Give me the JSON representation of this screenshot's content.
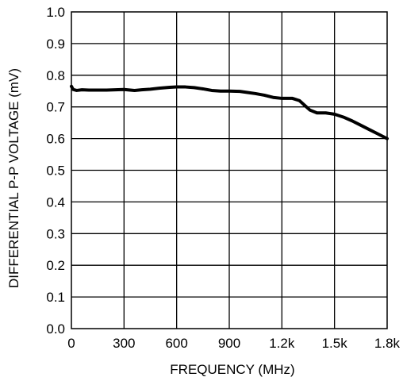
{
  "chart_data": {
    "type": "line",
    "title": "",
    "xlabel": "FREQUENCY (MHz)",
    "ylabel": "DIFFERENTIAL P-P VOLTAGE (mV)",
    "xlim": [
      0,
      1800
    ],
    "ylim": [
      0,
      1.0
    ],
    "grid": true,
    "legend": "none",
    "x_ticks": [
      {
        "value": 0,
        "label": "0"
      },
      {
        "value": 300,
        "label": "300"
      },
      {
        "value": 600,
        "label": "600"
      },
      {
        "value": 900,
        "label": "900"
      },
      {
        "value": 1200,
        "label": "1.2k"
      },
      {
        "value": 1500,
        "label": "1.5k"
      },
      {
        "value": 1800,
        "label": "1.8k"
      }
    ],
    "y_ticks": [
      {
        "value": 0,
        "label": "0.0"
      },
      {
        "value": 0.1,
        "label": "0.1"
      },
      {
        "value": 0.2,
        "label": "0.2"
      },
      {
        "value": 0.3,
        "label": "0.3"
      },
      {
        "value": 0.4,
        "label": "0.4"
      },
      {
        "value": 0.5,
        "label": "0.5"
      },
      {
        "value": 0.6,
        "label": "0.6"
      },
      {
        "value": 0.7,
        "label": "0.7"
      },
      {
        "value": 0.8,
        "label": "0.8"
      },
      {
        "value": 0.9,
        "label": "0.9"
      },
      {
        "value": 1.0,
        "label": "1.0"
      }
    ],
    "series": [
      {
        "color": "#000000",
        "x": [
          0,
          10,
          30,
          60,
          100,
          150,
          200,
          300,
          360,
          400,
          450,
          500,
          560,
          600,
          650,
          700,
          750,
          800,
          850,
          900,
          960,
          1000,
          1050,
          1100,
          1150,
          1200,
          1230,
          1260,
          1300,
          1330,
          1360,
          1400,
          1450,
          1500,
          1550,
          1600,
          1650,
          1700,
          1750,
          1800
        ],
        "y": [
          0.765,
          0.755,
          0.752,
          0.754,
          0.753,
          0.753,
          0.753,
          0.755,
          0.752,
          0.754,
          0.756,
          0.759,
          0.762,
          0.763,
          0.763,
          0.761,
          0.757,
          0.752,
          0.75,
          0.75,
          0.749,
          0.746,
          0.742,
          0.737,
          0.73,
          0.727,
          0.727,
          0.727,
          0.72,
          0.705,
          0.69,
          0.681,
          0.681,
          0.677,
          0.668,
          0.656,
          0.642,
          0.628,
          0.614,
          0.6
        ]
      }
    ]
  }
}
